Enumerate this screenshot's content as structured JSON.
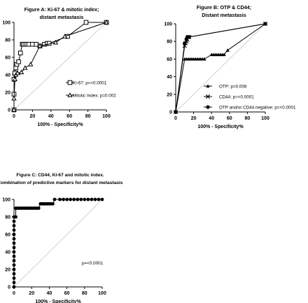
{
  "chart_data": [
    {
      "id": "A",
      "type": "line",
      "title": [
        "Figure A: Ki-67 & mitotic index;",
        "distant metastasis"
      ],
      "xlabel": "100% - Specificity%",
      "ylabel": "",
      "xlim": [
        0,
        100
      ],
      "ylim": [
        0,
        100
      ],
      "xticks": [
        0,
        20,
        40,
        60,
        80,
        100
      ],
      "yticks": [
        0,
        20,
        40,
        60,
        80,
        100
      ],
      "reference_line": true,
      "series": [
        {
          "name": "Ki-67: p=<0.0001",
          "marker": "square",
          "points": [
            [
              0,
              0
            ],
            [
              0,
              18
            ],
            [
              0,
              35
            ],
            [
              1,
              42
            ],
            [
              2,
              48
            ],
            [
              3,
              52
            ],
            [
              5,
              55
            ],
            [
              7,
              65
            ],
            [
              9,
              75
            ],
            [
              10,
              75
            ],
            [
              12,
              75
            ],
            [
              14,
              75
            ],
            [
              16,
              75
            ],
            [
              20,
              75
            ],
            [
              24,
              75
            ],
            [
              28,
              73
            ],
            [
              33,
              75
            ],
            [
              36,
              76
            ],
            [
              38,
              76
            ],
            [
              58,
              84
            ],
            [
              78,
              100
            ],
            [
              100,
              100
            ]
          ]
        },
        {
          "name": "Mitotic Index: p=0.002",
          "marker": "triangle",
          "points": [
            [
              0,
              0
            ],
            [
              0,
              13
            ],
            [
              1,
              35
            ],
            [
              2,
              40
            ],
            [
              4,
              42
            ],
            [
              8,
              43
            ],
            [
              12,
              48
            ],
            [
              18,
              52
            ],
            [
              28,
              73
            ],
            [
              45,
              77
            ],
            [
              55,
              84
            ],
            [
              100,
              100
            ]
          ]
        }
      ]
    },
    {
      "id": "B",
      "type": "line",
      "title": [
        "Figure B: OTP & CD44;",
        "Distant metastasis"
      ],
      "xlabel": "100% - Specificity%",
      "ylabel": "",
      "xlim": [
        0,
        100
      ],
      "ylim": [
        0,
        100
      ],
      "xticks": [
        0,
        20,
        40,
        60,
        80,
        100
      ],
      "yticks": [
        0,
        20,
        40,
        60,
        80,
        100
      ],
      "reference_line": true,
      "series": [
        {
          "name": "OTP: p=0.008",
          "marker": "triangle",
          "points": [
            [
              0,
              0
            ],
            [
              10,
              60
            ],
            [
              12,
              60
            ],
            [
              14,
              60
            ],
            [
              16,
              60
            ],
            [
              18,
              60
            ],
            [
              20,
              60
            ],
            [
              22,
              60
            ],
            [
              24,
              60
            ],
            [
              26,
              60
            ],
            [
              28,
              60
            ],
            [
              30,
              60
            ],
            [
              32,
              60
            ],
            [
              40,
              65
            ],
            [
              42,
              65
            ],
            [
              44,
              65
            ],
            [
              46,
              65
            ],
            [
              48,
              65
            ],
            [
              50,
              65
            ],
            [
              52,
              65
            ],
            [
              54,
              65
            ],
            [
              58,
              70
            ],
            [
              100,
              100
            ]
          ]
        },
        {
          "name": "CD44: p=<0.0001",
          "marker": "x",
          "points": [
            [
              0,
              0
            ],
            [
              10,
              75
            ],
            [
              11,
              78
            ],
            [
              12,
              80
            ],
            [
              13,
              82
            ],
            [
              14,
              85
            ],
            [
              15,
              85
            ],
            [
              100,
              100
            ]
          ]
        },
        {
          "name": "OTP and/or CD44 negative: p=<0.0001",
          "marker": "circle",
          "points": [
            [
              0,
              0
            ],
            [
              10,
              78
            ],
            [
              12,
              83
            ],
            [
              13,
              85
            ],
            [
              14,
              85
            ],
            [
              15,
              85
            ],
            [
              100,
              100
            ]
          ]
        }
      ]
    },
    {
      "id": "C",
      "type": "line",
      "title": [
        "Figure C: CD44, KI-67 and mitotic index.",
        "Combination of predictive markers for distant metastasis"
      ],
      "xlabel": "100% - Specificity%",
      "ylabel": "",
      "xlim": [
        0,
        100
      ],
      "ylim": [
        0,
        100
      ],
      "xticks": [
        0,
        20,
        40,
        60,
        80,
        100
      ],
      "yticks": [
        0,
        20,
        40,
        60,
        80,
        100
      ],
      "reference_line": true,
      "annotation": "p=<0.0001",
      "series": [
        {
          "name": "",
          "marker": "circle",
          "points": [
            [
              0,
              0
            ],
            [
              0,
              5
            ],
            [
              0,
              10
            ],
            [
              0,
              15
            ],
            [
              0,
              20
            ],
            [
              0,
              25
            ],
            [
              0,
              30
            ],
            [
              0,
              35
            ],
            [
              0,
              40
            ],
            [
              0,
              45
            ],
            [
              0,
              50
            ],
            [
              0,
              55
            ],
            [
              0,
              60
            ],
            [
              0,
              65
            ],
            [
              0,
              70
            ],
            [
              0,
              75
            ],
            [
              0,
              80
            ],
            [
              2,
              80
            ],
            [
              2,
              90
            ],
            [
              4,
              90
            ],
            [
              6,
              90
            ],
            [
              8,
              90
            ],
            [
              10,
              90
            ],
            [
              12,
              90
            ],
            [
              14,
              90
            ],
            [
              16,
              90
            ],
            [
              18,
              90
            ],
            [
              20,
              90
            ],
            [
              22,
              90
            ],
            [
              24,
              90
            ],
            [
              26,
              90
            ],
            [
              28,
              90
            ],
            [
              30,
              95
            ],
            [
              32,
              95
            ],
            [
              34,
              95
            ],
            [
              36,
              95
            ],
            [
              38,
              95
            ],
            [
              40,
              95
            ],
            [
              42,
              95
            ],
            [
              44,
              95
            ],
            [
              46,
              100
            ],
            [
              52,
              100
            ],
            [
              56,
              100
            ],
            [
              60,
              100
            ],
            [
              64,
              100
            ],
            [
              68,
              100
            ],
            [
              72,
              100
            ],
            [
              76,
              100
            ],
            [
              80,
              100
            ],
            [
              84,
              100
            ],
            [
              88,
              100
            ],
            [
              92,
              100
            ],
            [
              96,
              100
            ],
            [
              100,
              100
            ]
          ]
        }
      ]
    }
  ]
}
